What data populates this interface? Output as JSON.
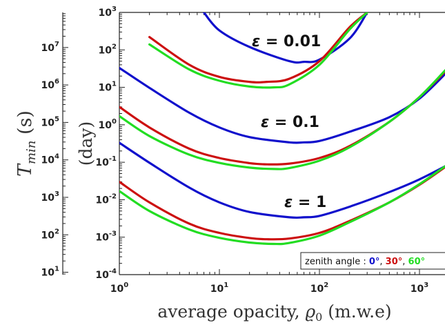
{
  "chart_data": {
    "type": "line",
    "xlabel": "average opacity, ϱ₀ (m.w.e)",
    "ylabel_left": "T_min (s)",
    "ylabel_right": "(day)",
    "x_scale": "log",
    "y_scale": "log",
    "xlim": [
      1,
      2000
    ],
    "ylim_day": [
      0.0001,
      1000
    ],
    "ylim_s": [
      8.64,
      86400000
    ],
    "x_ticks": [
      "10^0",
      "10^1",
      "10^2",
      "10^3"
    ],
    "y_ticks_day": [
      "10^-4",
      "10^-3",
      "10^-2",
      "10^-1",
      "10^0",
      "10^1",
      "10^2",
      "10^3"
    ],
    "y_ticks_s": [
      "10^1",
      "10^2",
      "10^3",
      "10^4",
      "10^5",
      "10^6",
      "10^7"
    ],
    "legend": {
      "prefix": "zenith angle : ",
      "items": [
        {
          "label": "0°",
          "color": "#1010cc"
        },
        {
          "label": "30°",
          "color": "#cc1010"
        },
        {
          "label": "60°",
          "color": "#22dd22"
        }
      ],
      "position": "bottom-right"
    },
    "annotations": [
      {
        "text": "ε = 0.01"
      },
      {
        "text": "ε = 0.1"
      },
      {
        "text": "ε = 1"
      }
    ],
    "series": [
      {
        "group": "ε = 1",
        "zenith": "0°",
        "color": "#1010cc",
        "x": [
          1,
          2,
          5,
          10,
          20,
          50,
          70,
          100,
          200,
          500,
          1000,
          2000
        ],
        "y": [
          0.33,
          0.097,
          0.021,
          0.0085,
          0.0047,
          0.0034,
          0.0034,
          0.0037,
          0.0065,
          0.016,
          0.035,
          0.09
        ]
      },
      {
        "group": "ε = 1",
        "zenith": "30°",
        "color": "#cc1010",
        "x": [
          1,
          2,
          5,
          10,
          20,
          30,
          50,
          100,
          200,
          500,
          1000,
          2000
        ],
        "y": [
          0.03,
          0.0085,
          0.0023,
          0.0013,
          0.00095,
          0.00088,
          0.00092,
          0.0013,
          0.0027,
          0.0085,
          0.025,
          0.09
        ]
      },
      {
        "group": "ε = 1",
        "zenith": "60°",
        "color": "#22dd22",
        "x": [
          1,
          2,
          5,
          10,
          20,
          35,
          50,
          100,
          200,
          500,
          1000,
          2000
        ],
        "y": [
          0.017,
          0.005,
          0.0016,
          0.00096,
          0.00072,
          0.00066,
          0.0007,
          0.0011,
          0.0025,
          0.0085,
          0.026,
          0.095
        ]
      },
      {
        "group": "ε = 0.1",
        "zenith": "0°",
        "color": "#1010cc",
        "x": [
          1,
          2,
          5,
          10,
          20,
          50,
          70,
          100,
          200,
          500,
          1000,
          2000
        ],
        "y": [
          33,
          9.7,
          2.1,
          0.85,
          0.47,
          0.34,
          0.34,
          0.37,
          0.65,
          1.6,
          5,
          30
        ]
      },
      {
        "group": "ε = 0.1",
        "zenith": "30°",
        "color": "#cc1010",
        "x": [
          1,
          2,
          5,
          10,
          20,
          30,
          50,
          100,
          200,
          500,
          1000,
          2000
        ],
        "y": [
          3,
          0.85,
          0.23,
          0.13,
          0.095,
          0.088,
          0.092,
          0.13,
          0.27,
          1.2,
          5.5,
          35
        ]
      },
      {
        "group": "ε = 0.1",
        "zenith": "60°",
        "color": "#22dd22",
        "x": [
          1,
          2,
          5,
          10,
          20,
          35,
          50,
          100,
          200,
          500,
          1000,
          2000
        ],
        "y": [
          1.7,
          0.5,
          0.16,
          0.096,
          0.072,
          0.066,
          0.07,
          0.11,
          0.25,
          1.2,
          5.5,
          38
        ]
      },
      {
        "group": "ε = 0.01",
        "zenith": "0°",
        "color": "#1010cc",
        "x": [
          7,
          10,
          20,
          50,
          70,
          100,
          200,
          300
        ],
        "y": [
          1000,
          330,
          120,
          50,
          48,
          55,
          200,
          1000
        ]
      },
      {
        "group": "ε = 0.01",
        "zenith": "30°",
        "color": "#cc1010",
        "x": [
          2,
          5,
          10,
          20,
          30,
          50,
          100,
          200,
          300
        ],
        "y": [
          220,
          40,
          19,
          14,
          14,
          17,
          50,
          400,
          1000
        ]
      },
      {
        "group": "ε = 0.01",
        "zenith": "60°",
        "color": "#22dd22",
        "x": [
          2,
          5,
          10,
          20,
          35,
          50,
          100,
          200,
          300
        ],
        "y": [
          140,
          30,
          15,
          10.5,
          10,
          12,
          40,
          350,
          1000
        ]
      }
    ]
  }
}
